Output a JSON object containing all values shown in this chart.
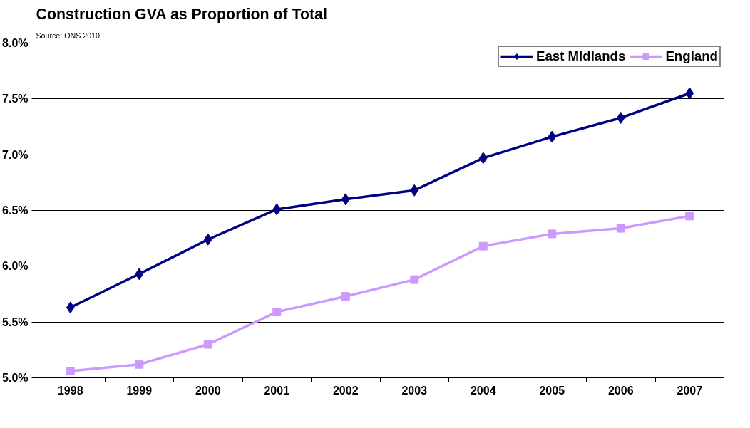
{
  "chart_data": {
    "type": "line",
    "title": "Construction GVA as Proportion of Total",
    "subtitle": "Source: ONS 2010",
    "categories": [
      "1998",
      "1999",
      "2000",
      "2001",
      "2002",
      "2003",
      "2004",
      "2005",
      "2006",
      "2007"
    ],
    "series": [
      {
        "name": "East Midlands",
        "color": "#000080",
        "marker": "diamond",
        "values": [
          5.63,
          5.93,
          6.24,
          6.51,
          6.6,
          6.68,
          6.97,
          7.16,
          7.33,
          7.55
        ]
      },
      {
        "name": "England",
        "color": "#cc99ff",
        "marker": "square",
        "values": [
          5.06,
          5.12,
          5.3,
          5.59,
          5.73,
          5.88,
          6.18,
          6.29,
          6.34,
          6.45
        ]
      }
    ],
    "ylim": [
      5.0,
      8.0
    ],
    "yticks": [
      {
        "value": 5.0,
        "label": "5.0%"
      },
      {
        "value": 5.5,
        "label": "5.5%"
      },
      {
        "value": 6.0,
        "label": "6.0%"
      },
      {
        "value": 6.5,
        "label": "6.5%"
      },
      {
        "value": 7.0,
        "label": "7.0%"
      },
      {
        "value": 7.5,
        "label": "7.5%"
      },
      {
        "value": 8.0,
        "label": "8.0%"
      }
    ],
    "grid": "y",
    "legend": "top right",
    "line_style": "solid"
  }
}
